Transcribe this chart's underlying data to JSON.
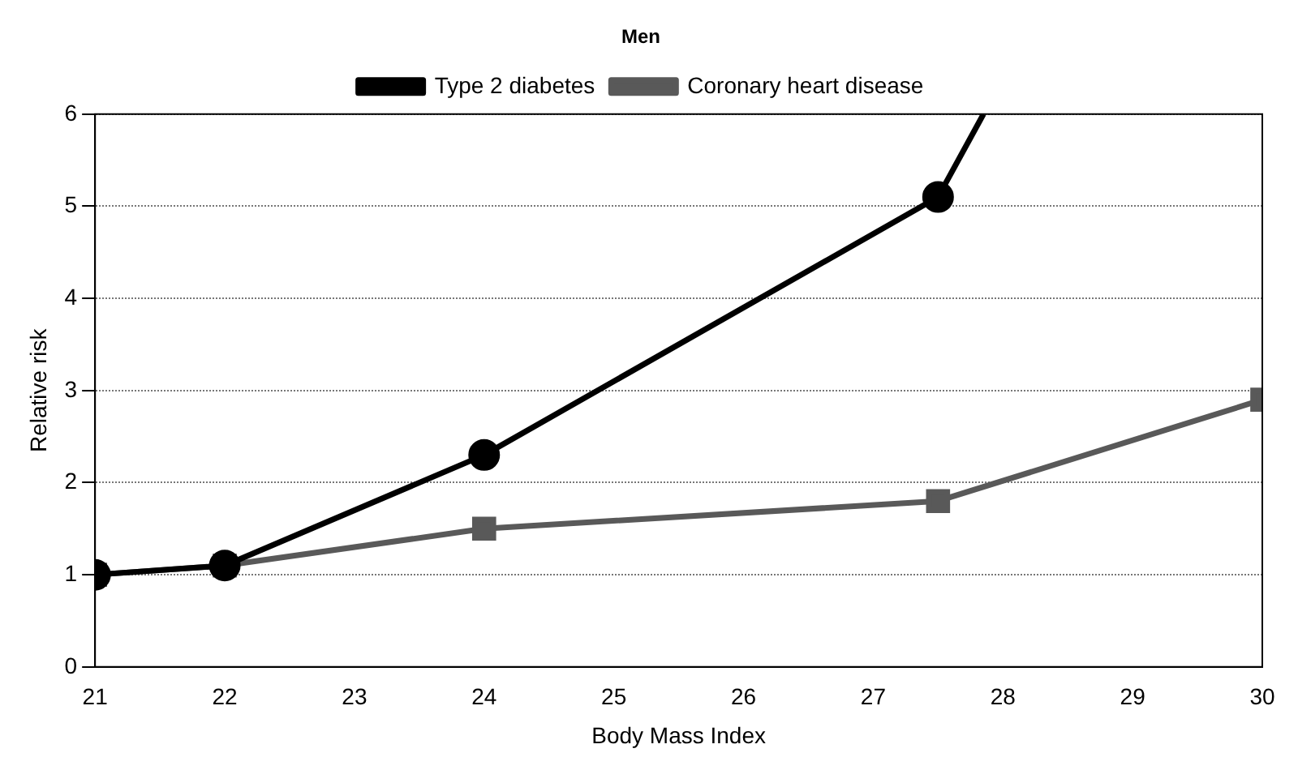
{
  "chart_data": {
    "type": "line",
    "title": "Men",
    "xlabel": "Body Mass Index",
    "ylabel": "Relative risk",
    "xlim": [
      21,
      30
    ],
    "xticks": [
      21,
      22,
      23,
      24,
      25,
      26,
      27,
      28,
      29,
      30
    ],
    "ylim": [
      0,
      6
    ],
    "yticks": [
      0,
      1,
      2,
      3,
      4,
      5,
      6
    ],
    "grid": "y",
    "legend": "top",
    "series": [
      {
        "name": "Type 2 diabetes",
        "color": "#000000",
        "marker": "circle",
        "x": [
          21,
          22,
          24,
          27.5,
          27.85
        ],
        "values": [
          1,
          1.1,
          2.3,
          5.1,
          6
        ]
      },
      {
        "name": "Coronary heart disease",
        "color": "#595959",
        "marker": "square",
        "x": [
          21,
          22,
          24,
          27.5,
          30
        ],
        "values": [
          1,
          1.1,
          1.5,
          1.8,
          2.9
        ]
      }
    ]
  }
}
